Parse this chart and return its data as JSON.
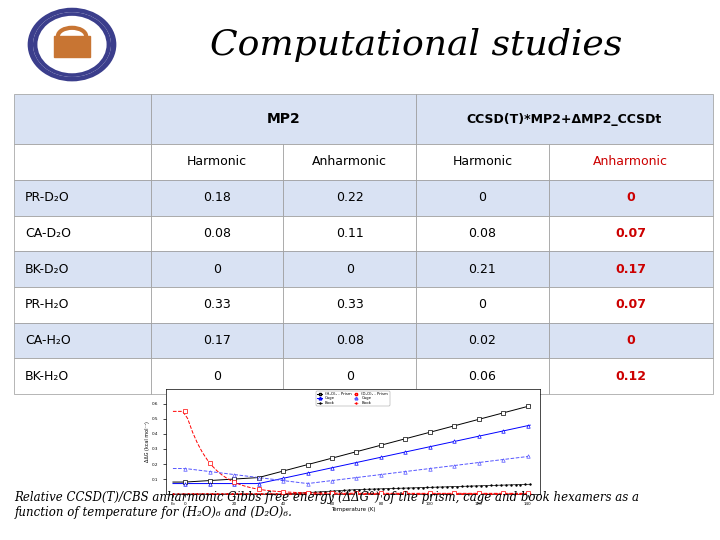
{
  "title": "Computational studies",
  "title_fontsize": 26,
  "title_style": "italic",
  "header_bar_color": "#3B3E8C",
  "row_bg_odd": "#D9E2F3",
  "row_bg_even": "#FFFFFF",
  "label_bg": "#D9E2F3",
  "sub_header_bg": "#FFFFFF",
  "col_header1": "MP2",
  "col_header2": "CCSD(T)*MP2+ΔMP2_CCSDt",
  "sub_headers": [
    "Harmonic",
    "Anharmonic",
    "Harmonic",
    "Anharmonic"
  ],
  "rows": [
    {
      "label": "PR-D₂O",
      "values": [
        "0.18",
        "0.22",
        "0",
        "0"
      ]
    },
    {
      "label": "CA-D₂O",
      "values": [
        "0.08",
        "0.11",
        "0.08",
        "0.07"
      ]
    },
    {
      "label": "BK-D₂O",
      "values": [
        "0",
        "0",
        "0.21",
        "0.17"
      ]
    },
    {
      "label": "PR-H₂O",
      "values": [
        "0.33",
        "0.33",
        "0",
        "0.07"
      ]
    },
    {
      "label": "CA-H₂O",
      "values": [
        "0.17",
        "0.08",
        "0.02",
        "0"
      ]
    },
    {
      "label": "BK-H₂O",
      "values": [
        "0",
        "0",
        "0.06",
        "0.12"
      ]
    }
  ],
  "red_color": "#CC0000",
  "normal_color": "#000000",
  "border_color": "#999999",
  "footer_text": "Relative CCSD(T)/CBS anharmonic Gibbs free energy (ΔΔG°) of the prism, cage and book hexamers as a\nfunction of temperature for (H₂O)₆ and (D₂O)₆.",
  "footer_fontsize": 8.5,
  "cell_fontsize": 9,
  "header_fontsize": 9,
  "row_label_fontsize": 9,
  "background_color": "#FFFFFF"
}
